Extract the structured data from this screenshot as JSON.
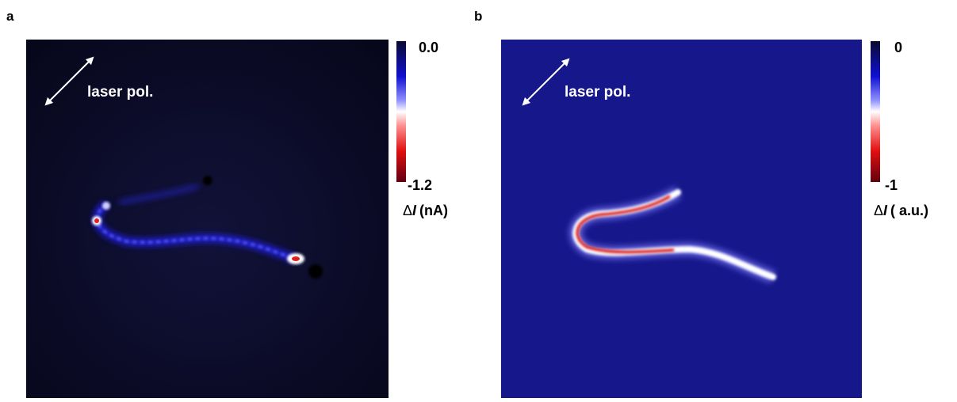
{
  "panels": [
    {
      "label": "a",
      "annotation": "laser pol.",
      "colorbar": {
        "top": "0.0",
        "bottom": "-1.2",
        "symbol": "Δ",
        "variable": "I",
        "unit": "(nA)"
      }
    },
    {
      "label": "b",
      "annotation": "laser pol.",
      "colorbar": {
        "top": "0",
        "bottom": "-1",
        "symbol": "Δ",
        "variable": "I",
        "unit": "( a.u.)"
      }
    }
  ]
}
